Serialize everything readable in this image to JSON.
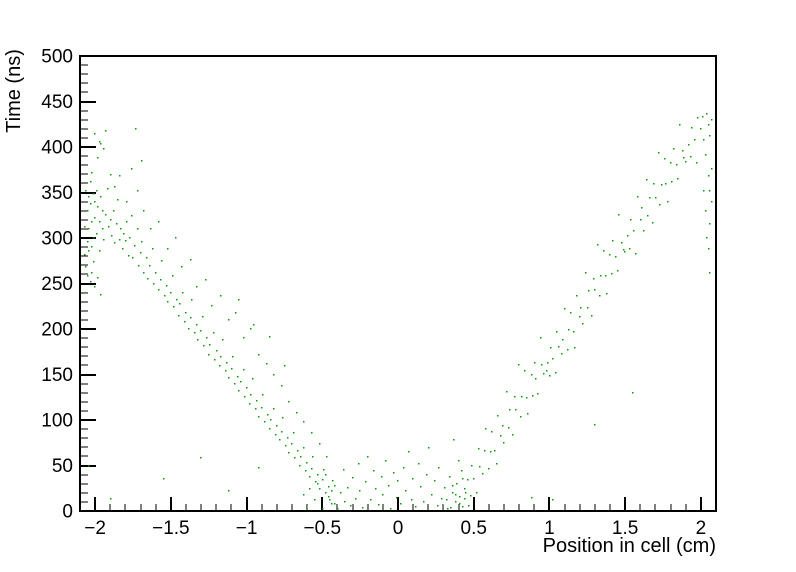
{
  "chart_data": {
    "type": "scatter",
    "title": "",
    "xlabel": "Position in cell (cm)",
    "ylabel": "Time (ns)",
    "xlim": [
      -2.1,
      2.1
    ],
    "ylim": [
      0,
      500
    ],
    "grid": false,
    "legend": null,
    "background": "#ffffff",
    "axis_color": "#000000",
    "marker_color": "#0a9a0a",
    "marker_size_px": 1.5,
    "x_major_ticks": [
      -2,
      -1.5,
      -1,
      -0.5,
      0,
      0.5,
      1,
      1.5,
      2
    ],
    "x_major_tick_labels": [
      "−2",
      "−1.5",
      "−1",
      "−0.5",
      "0",
      "0.5",
      "1",
      "1.5",
      "2"
    ],
    "x_minor_step": 0.1,
    "y_major_ticks": [
      0,
      50,
      100,
      150,
      200,
      250,
      300,
      350,
      400,
      450,
      500
    ],
    "y_major_tick_labels": [
      "0",
      "50",
      "100",
      "150",
      "200",
      "250",
      "300",
      "350",
      "400",
      "450",
      "500"
    ],
    "y_minor_step": 10,
    "points": [
      [
        -2.06,
        352
      ],
      [
        -2.05,
        330
      ],
      [
        -2.05,
        296
      ],
      [
        -2.04,
        345
      ],
      [
        -2.04,
        310
      ],
      [
        -2.03,
        362
      ],
      [
        -2.03,
        338
      ],
      [
        -2.02,
        318
      ],
      [
        -2.02,
        290
      ],
      [
        -2.01,
        349
      ],
      [
        -2.01,
        300
      ],
      [
        -2.0,
        340
      ],
      [
        -2.0,
        322
      ],
      [
        -1.99,
        352
      ],
      [
        -1.99,
        305
      ],
      [
        -1.98,
        334
      ],
      [
        -1.97,
        318
      ],
      [
        -1.97,
        286
      ],
      [
        -1.96,
        345
      ],
      [
        -1.95,
        310
      ],
      [
        -1.95,
        330
      ],
      [
        -1.94,
        298
      ],
      [
        -1.93,
        326
      ],
      [
        -1.92,
        354
      ],
      [
        -1.91,
        312
      ],
      [
        -1.9,
        320
      ],
      [
        -1.89,
        302
      ],
      [
        -1.88,
        330
      ],
      [
        -1.87,
        295
      ],
      [
        -1.86,
        316
      ],
      [
        -1.85,
        342
      ],
      [
        -1.84,
        298
      ],
      [
        -1.83,
        310
      ],
      [
        -1.82,
        288
      ],
      [
        -1.81,
        305
      ],
      [
        -1.8,
        297
      ],
      [
        -1.79,
        318
      ],
      [
        -1.78,
        281
      ],
      [
        -1.77,
        300
      ],
      [
        -1.76,
        324
      ],
      [
        -1.75,
        278
      ],
      [
        -1.74,
        292
      ],
      [
        -1.72,
        310
      ],
      [
        -1.71,
        270
      ],
      [
        -1.7,
        284
      ],
      [
        -1.69,
        296
      ],
      [
        -1.68,
        262
      ],
      [
        -1.66,
        278
      ],
      [
        -1.65,
        255
      ],
      [
        -1.64,
        270
      ],
      [
        -1.62,
        288
      ],
      [
        -1.61,
        250
      ],
      [
        -1.6,
        262
      ],
      [
        -1.58,
        243
      ],
      [
        -1.57,
        254
      ],
      [
        -1.56,
        275
      ],
      [
        -1.54,
        236
      ],
      [
        -1.53,
        248
      ],
      [
        -1.52,
        230
      ],
      [
        -1.5,
        240
      ],
      [
        -1.49,
        258
      ],
      [
        -1.48,
        224
      ],
      [
        -1.46,
        232
      ],
      [
        -1.45,
        215
      ],
      [
        -1.44,
        228
      ],
      [
        -1.42,
        240
      ],
      [
        -1.41,
        208
      ],
      [
        -1.4,
        218
      ],
      [
        -1.38,
        200
      ],
      [
        -1.37,
        212
      ],
      [
        -1.36,
        232
      ],
      [
        -1.34,
        196
      ],
      [
        -1.33,
        205
      ],
      [
        -1.32,
        188
      ],
      [
        -1.3,
        198
      ],
      [
        -1.29,
        214
      ],
      [
        -1.28,
        182
      ],
      [
        -1.26,
        190
      ],
      [
        -1.25,
        172
      ],
      [
        -1.24,
        183
      ],
      [
        -1.22,
        196
      ],
      [
        -1.21,
        166
      ],
      [
        -1.2,
        176
      ],
      [
        -1.18,
        160
      ],
      [
        -1.17,
        170
      ],
      [
        -1.16,
        188
      ],
      [
        -1.14,
        154
      ],
      [
        -1.13,
        163
      ],
      [
        -1.12,
        146
      ],
      [
        -1.1,
        156
      ],
      [
        -1.09,
        170
      ],
      [
        -1.08,
        140
      ],
      [
        -1.06,
        148
      ],
      [
        -1.05,
        132
      ],
      [
        -1.04,
        142
      ],
      [
        -1.02,
        155
      ],
      [
        -1.01,
        126
      ],
      [
        -1.0,
        135
      ],
      [
        -0.98,
        118
      ],
      [
        -0.97,
        128
      ],
      [
        -0.96,
        145
      ],
      [
        -0.94,
        112
      ],
      [
        -0.93,
        121
      ],
      [
        -0.92,
        104
      ],
      [
        -0.9,
        114
      ],
      [
        -0.89,
        128
      ],
      [
        -0.88,
        98
      ],
      [
        -0.86,
        106
      ],
      [
        -0.85,
        90
      ],
      [
        -0.84,
        100
      ],
      [
        -0.82,
        112
      ],
      [
        -0.81,
        84
      ],
      [
        -0.8,
        94
      ],
      [
        -0.78,
        78
      ],
      [
        -0.77,
        87
      ],
      [
        -0.76,
        102
      ],
      [
        -0.74,
        72
      ],
      [
        -0.73,
        80
      ],
      [
        -0.72,
        64
      ],
      [
        -0.7,
        74
      ],
      [
        -0.69,
        86
      ],
      [
        -0.68,
        58
      ],
      [
        -0.66,
        66
      ],
      [
        -0.65,
        50
      ],
      [
        -0.64,
        60
      ],
      [
        -0.62,
        70
      ],
      [
        -0.61,
        44
      ],
      [
        -0.6,
        53
      ],
      [
        -0.58,
        38
      ],
      [
        -0.57,
        46
      ],
      [
        -0.56,
        60
      ],
      [
        -0.54,
        32
      ],
      [
        -0.53,
        40
      ],
      [
        -0.52,
        25
      ],
      [
        -0.5,
        34
      ],
      [
        -0.49,
        45
      ],
      [
        -0.48,
        20
      ],
      [
        -0.46,
        27
      ],
      [
        -0.45,
        12
      ],
      [
        -0.44,
        22
      ],
      [
        -0.43,
        33
      ],
      [
        -0.42,
        8
      ],
      [
        -2.02,
        372
      ],
      [
        -1.98,
        388
      ],
      [
        -1.96,
        404
      ],
      [
        -1.93,
        418
      ],
      [
        -1.9,
        370
      ],
      [
        -1.87,
        356
      ],
      [
        -1.84,
        368
      ],
      [
        -1.79,
        340
      ],
      [
        -1.73,
        420
      ],
      [
        -1.72,
        352
      ],
      [
        -1.68,
        330
      ],
      [
        -1.63,
        310
      ],
      [
        -1.58,
        318
      ],
      [
        -1.52,
        288
      ],
      [
        -1.47,
        300
      ],
      [
        -1.43,
        268
      ],
      [
        -1.37,
        276
      ],
      [
        -1.33,
        246
      ],
      [
        -1.27,
        254
      ],
      [
        -1.23,
        226
      ],
      [
        -1.17,
        236
      ],
      [
        -1.12,
        210
      ],
      [
        -1.07,
        218
      ],
      [
        -1.05,
        232
      ],
      [
        -1.02,
        190
      ],
      [
        -0.97,
        200
      ],
      [
        -0.95,
        205
      ],
      [
        -0.92,
        172
      ],
      [
        -0.87,
        162
      ],
      [
        -0.85,
        192
      ],
      [
        -0.82,
        150
      ],
      [
        -0.77,
        138
      ],
      [
        -0.75,
        160
      ],
      [
        -0.72,
        120
      ],
      [
        -0.67,
        108
      ],
      [
        -0.62,
        98
      ],
      [
        -0.57,
        86
      ],
      [
        -0.52,
        74
      ],
      [
        -0.47,
        60
      ],
      [
        -2.07,
        312
      ],
      [
        -2.07,
        282
      ],
      [
        -2.06,
        268
      ],
      [
        -2.05,
        258
      ],
      [
        -2.04,
        286
      ],
      [
        -2.03,
        252
      ],
      [
        -2.06,
        240
      ],
      [
        -2.02,
        262
      ],
      [
        -2.01,
        274
      ],
      [
        -2.0,
        246
      ],
      [
        -1.98,
        256
      ],
      [
        -1.96,
        238
      ],
      [
        -2.0,
        415
      ],
      [
        -1.97,
        406
      ],
      [
        -1.94,
        398
      ],
      [
        -1.76,
        376
      ],
      [
        -1.69,
        385
      ],
      [
        0.45,
        20
      ],
      [
        0.46,
        34
      ],
      [
        0.48,
        17
      ],
      [
        0.49,
        50
      ],
      [
        0.5,
        35
      ],
      [
        0.52,
        20
      ],
      [
        0.53,
        68
      ],
      [
        0.54,
        49
      ],
      [
        0.56,
        41
      ],
      [
        0.57,
        66
      ],
      [
        0.58,
        90
      ],
      [
        0.6,
        46
      ],
      [
        0.61,
        65
      ],
      [
        0.62,
        87
      ],
      [
        0.64,
        66
      ],
      [
        0.65,
        52
      ],
      [
        0.66,
        105
      ],
      [
        0.68,
        83
      ],
      [
        0.69,
        94
      ],
      [
        0.7,
        75
      ],
      [
        0.72,
        131
      ],
      [
        0.73,
        92
      ],
      [
        0.74,
        111
      ],
      [
        0.76,
        84
      ],
      [
        0.77,
        126
      ],
      [
        0.78,
        111
      ],
      [
        0.8,
        161
      ],
      [
        0.81,
        104
      ],
      [
        0.82,
        126
      ],
      [
        0.84,
        154
      ],
      [
        0.85,
        125
      ],
      [
        0.86,
        107
      ],
      [
        0.88,
        150
      ],
      [
        0.89,
        127
      ],
      [
        0.9,
        163
      ],
      [
        0.91,
        145
      ],
      [
        0.92,
        129
      ],
      [
        0.94,
        190
      ],
      [
        0.95,
        161
      ],
      [
        0.96,
        151
      ],
      [
        0.98,
        154
      ],
      [
        0.99,
        163
      ],
      [
        1.0,
        149
      ],
      [
        1.01,
        179
      ],
      [
        1.02,
        167
      ],
      [
        1.04,
        152
      ],
      [
        1.05,
        197
      ],
      [
        1.06,
        181
      ],
      [
        1.08,
        173
      ],
      [
        1.09,
        188
      ],
      [
        1.1,
        222
      ],
      [
        1.12,
        177
      ],
      [
        1.13,
        199
      ],
      [
        1.14,
        218
      ],
      [
        1.16,
        197
      ],
      [
        1.17,
        179
      ],
      [
        1.18,
        236
      ],
      [
        1.2,
        214
      ],
      [
        1.21,
        223
      ],
      [
        1.22,
        206
      ],
      [
        1.24,
        262
      ],
      [
        1.25,
        223
      ],
      [
        1.26,
        242
      ],
      [
        1.28,
        215
      ],
      [
        1.29,
        255
      ],
      [
        1.3,
        243
      ],
      [
        1.32,
        293
      ],
      [
        1.33,
        236
      ],
      [
        1.34,
        258
      ],
      [
        1.36,
        286
      ],
      [
        1.37,
        259
      ],
      [
        1.38,
        239
      ],
      [
        1.4,
        282
      ],
      [
        1.41,
        261
      ],
      [
        1.42,
        297
      ],
      [
        1.44,
        279
      ],
      [
        1.45,
        264
      ],
      [
        1.46,
        326
      ],
      [
        1.48,
        295
      ],
      [
        1.49,
        287
      ],
      [
        1.5,
        285
      ],
      [
        1.52,
        302
      ],
      [
        1.53,
        288
      ],
      [
        1.54,
        320
      ],
      [
        1.56,
        308
      ],
      [
        1.57,
        283
      ],
      [
        1.58,
        345
      ],
      [
        1.6,
        320
      ],
      [
        1.61,
        333
      ],
      [
        1.62,
        308
      ],
      [
        1.64,
        364
      ],
      [
        1.65,
        324
      ],
      [
        1.66,
        344
      ],
      [
        1.68,
        317
      ],
      [
        1.69,
        360
      ],
      [
        1.7,
        344
      ],
      [
        1.72,
        394
      ],
      [
        1.73,
        337
      ],
      [
        1.74,
        359
      ],
      [
        1.76,
        387
      ],
      [
        1.77,
        360
      ],
      [
        1.78,
        340
      ],
      [
        1.8,
        383
      ],
      [
        1.81,
        362
      ],
      [
        1.82,
        398
      ],
      [
        1.84,
        380
      ],
      [
        1.85,
        365
      ],
      [
        1.86,
        425
      ],
      [
        1.88,
        396
      ],
      [
        1.89,
        388
      ],
      [
        1.9,
        384
      ],
      [
        1.92,
        403
      ],
      [
        1.93,
        389
      ],
      [
        1.94,
        421
      ],
      [
        1.96,
        408
      ],
      [
        1.97,
        383
      ],
      [
        1.98,
        432
      ],
      [
        2.0,
        420
      ],
      [
        2.01,
        433
      ],
      [
        2.02,
        408
      ],
      [
        2.04,
        436
      ],
      [
        2.05,
        424
      ],
      [
        2.06,
        412
      ],
      [
        2.06,
        352
      ],
      [
        2.05,
        368
      ],
      [
        2.07,
        340
      ],
      [
        2.04,
        300
      ],
      [
        2.06,
        316
      ],
      [
        2.03,
        330
      ],
      [
        2.07,
        430
      ],
      [
        2.02,
        352
      ],
      [
        2.05,
        288
      ],
      [
        2.07,
        376
      ],
      [
        2.03,
        392
      ],
      [
        2.06,
        262
      ],
      [
        -0.62,
        18
      ],
      [
        -0.6,
        5
      ],
      [
        -0.58,
        25
      ],
      [
        -0.55,
        12
      ],
      [
        -0.53,
        30
      ],
      [
        -0.5,
        3
      ],
      [
        -0.48,
        40
      ],
      [
        -0.46,
        16
      ],
      [
        -0.44,
        8
      ],
      [
        -0.42,
        28
      ],
      [
        -0.4,
        2
      ],
      [
        -0.38,
        20
      ],
      [
        -0.36,
        45
      ],
      [
        -0.35,
        10
      ],
      [
        -0.33,
        26
      ],
      [
        -0.31,
        6
      ],
      [
        -0.3,
        36
      ],
      [
        -0.28,
        14
      ],
      [
        -0.26,
        52
      ],
      [
        -0.25,
        22
      ],
      [
        -0.23,
        4
      ],
      [
        -0.21,
        32
      ],
      [
        -0.2,
        60
      ],
      [
        -0.18,
        12
      ],
      [
        -0.16,
        44
      ],
      [
        -0.15,
        25
      ],
      [
        -0.13,
        7
      ],
      [
        -0.11,
        38
      ],
      [
        -0.1,
        18
      ],
      [
        -0.08,
        55
      ],
      [
        -0.06,
        28
      ],
      [
        -0.05,
        3
      ],
      [
        -0.03,
        42
      ],
      [
        -0.01,
        15
      ],
      [
        0.0,
        33
      ],
      [
        0.02,
        8
      ],
      [
        0.04,
        48
      ],
      [
        0.05,
        22
      ],
      [
        0.07,
        65
      ],
      [
        0.09,
        12
      ],
      [
        0.1,
        35
      ],
      [
        0.12,
        5
      ],
      [
        0.14,
        52
      ],
      [
        0.15,
        27
      ],
      [
        0.17,
        10
      ],
      [
        0.19,
        40
      ],
      [
        0.2,
        70
      ],
      [
        0.22,
        18
      ],
      [
        0.24,
        33
      ],
      [
        0.26,
        6
      ],
      [
        0.27,
        48
      ],
      [
        0.29,
        14
      ],
      [
        0.31,
        26
      ],
      [
        0.33,
        2
      ],
      [
        0.34,
        38
      ],
      [
        0.36,
        20
      ],
      [
        0.38,
        10
      ],
      [
        0.39,
        30
      ],
      [
        0.41,
        16
      ],
      [
        0.42,
        44
      ],
      [
        0.43,
        5
      ],
      [
        0.44,
        24
      ],
      [
        0.4,
        55
      ],
      [
        0.37,
        78
      ],
      [
        0.32,
        12
      ],
      [
        0.35,
        4
      ],
      [
        0.38,
        18
      ],
      [
        0.41,
        8
      ],
      [
        0.44,
        14
      ],
      [
        0.47,
        6
      ],
      [
        0.36,
        28
      ],
      [
        0.43,
        35
      ],
      [
        -2.04,
        50
      ],
      [
        -1.9,
        14
      ],
      [
        -1.55,
        35
      ],
      [
        -1.3,
        58
      ],
      [
        -1.12,
        22
      ],
      [
        -0.92,
        48
      ],
      [
        0.88,
        15
      ],
      [
        1.02,
        12
      ],
      [
        1.3,
        95
      ],
      [
        1.55,
        130
      ]
    ]
  }
}
